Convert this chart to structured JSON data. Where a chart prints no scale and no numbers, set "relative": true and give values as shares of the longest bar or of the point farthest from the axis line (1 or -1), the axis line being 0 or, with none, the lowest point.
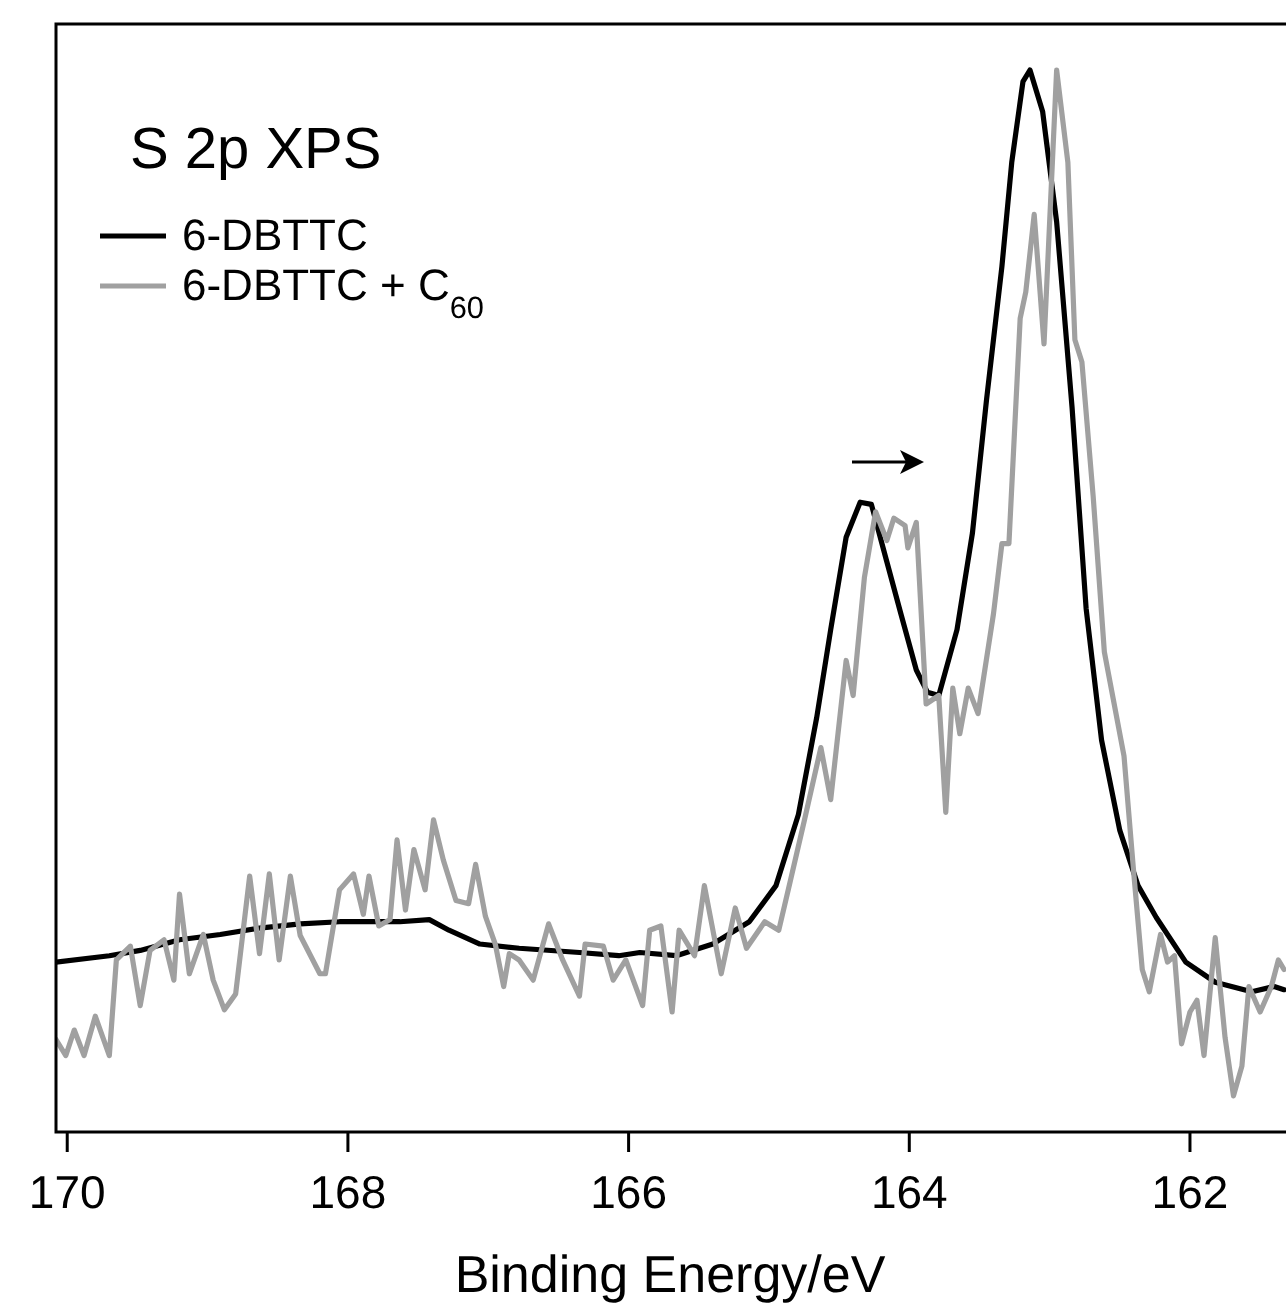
{
  "chart_data": {
    "type": "line",
    "title": "S 2p XPS",
    "xlabel": "Binding Energy/eV",
    "xlim": [
      170.08,
      161.33
    ],
    "xticks": [
      170,
      168,
      166,
      164,
      162
    ],
    "relative": true,
    "grid": false,
    "legend": "top left",
    "line_style": "solid",
    "series": [
      {
        "name": "6-DBTTC",
        "color": "#000000",
        "x": [
          170.08,
          169.7,
          169.48,
          169.2,
          168.91,
          168.63,
          168.34,
          168.06,
          167.63,
          167.42,
          167.28,
          167.06,
          166.78,
          166.35,
          166.07,
          165.92,
          165.66,
          165.4,
          165.14,
          164.95,
          164.79,
          164.66,
          164.56,
          164.45,
          164.35,
          164.27,
          164.16,
          164.06,
          163.95,
          163.87,
          163.79,
          163.66,
          163.55,
          163.45,
          163.34,
          163.27,
          163.19,
          163.14,
          163.05,
          162.95,
          162.84,
          162.74,
          162.63,
          162.5,
          162.37,
          162.24,
          162.03,
          161.82,
          161.56,
          161.4,
          161.33
        ],
        "values": [
          0.16,
          0.166,
          0.171,
          0.181,
          0.186,
          0.192,
          0.196,
          0.198,
          0.198,
          0.2,
          0.19,
          0.177,
          0.173,
          0.169,
          0.166,
          0.169,
          0.166,
          0.177,
          0.198,
          0.232,
          0.299,
          0.39,
          0.473,
          0.56,
          0.593,
          0.591,
          0.537,
          0.488,
          0.435,
          0.414,
          0.411,
          0.473,
          0.564,
          0.689,
          0.815,
          0.913,
          0.989,
          1.0,
          0.961,
          0.857,
          0.682,
          0.493,
          0.369,
          0.284,
          0.232,
          0.202,
          0.16,
          0.141,
          0.132,
          0.137,
          0.134
        ]
      },
      {
        "name": "6-DBTTC + C$_{60}$",
        "color": "#a0a0a0",
        "x": [
          170.08,
          170.01,
          169.95,
          169.88,
          169.8,
          169.7,
          169.65,
          169.55,
          169.48,
          169.41,
          169.31,
          169.24,
          169.2,
          169.13,
          169.03,
          168.96,
          168.88,
          168.8,
          168.7,
          168.63,
          168.56,
          168.49,
          168.41,
          168.34,
          168.2,
          168.16,
          168.06,
          167.96,
          167.89,
          167.85,
          167.78,
          167.7,
          167.65,
          167.59,
          167.53,
          167.45,
          167.39,
          167.32,
          167.23,
          167.14,
          167.09,
          167.02,
          166.95,
          166.89,
          166.85,
          166.78,
          166.68,
          166.57,
          166.47,
          166.35,
          166.31,
          166.18,
          166.11,
          166.02,
          165.9,
          165.85,
          165.77,
          165.69,
          165.64,
          165.53,
          165.46,
          165.34,
          165.24,
          165.16,
          165.03,
          164.93,
          164.85,
          164.75,
          164.63,
          164.56,
          164.45,
          164.4,
          164.32,
          164.24,
          164.16,
          164.11,
          164.03,
          164.01,
          163.95,
          163.88,
          163.79,
          163.74,
          163.69,
          163.64,
          163.58,
          163.51,
          163.4,
          163.34,
          163.29,
          163.21,
          163.17,
          163.11,
          163.04,
          162.95,
          162.87,
          162.82,
          162.77,
          162.69,
          162.61,
          162.47,
          162.4,
          162.34,
          162.29,
          162.21,
          162.16,
          162.11,
          162.06,
          162.0,
          161.95,
          161.9,
          161.82,
          161.75,
          161.69,
          161.63,
          161.58,
          161.5,
          161.42,
          161.37,
          161.33
        ],
        "values": [
          0.087,
          0.072,
          0.096,
          0.072,
          0.109,
          0.072,
          0.162,
          0.175,
          0.119,
          0.171,
          0.181,
          0.143,
          0.224,
          0.149,
          0.186,
          0.143,
          0.115,
          0.13,
          0.241,
          0.168,
          0.243,
          0.162,
          0.241,
          0.185,
          0.149,
          0.149,
          0.228,
          0.243,
          0.205,
          0.241,
          0.194,
          0.2,
          0.275,
          0.209,
          0.266,
          0.228,
          0.294,
          0.256,
          0.218,
          0.215,
          0.252,
          0.203,
          0.177,
          0.137,
          0.168,
          0.162,
          0.143,
          0.196,
          0.162,
          0.128,
          0.177,
          0.175,
          0.143,
          0.162,
          0.119,
          0.19,
          0.194,
          0.113,
          0.19,
          0.166,
          0.232,
          0.149,
          0.211,
          0.173,
          0.198,
          0.19,
          0.235,
          0.292,
          0.362,
          0.313,
          0.444,
          0.411,
          0.522,
          0.584,
          0.557,
          0.578,
          0.571,
          0.55,
          0.574,
          0.403,
          0.411,
          0.301,
          0.418,
          0.375,
          0.418,
          0.394,
          0.488,
          0.554,
          0.554,
          0.766,
          0.791,
          0.864,
          0.742,
          1.0,
          0.913,
          0.746,
          0.725,
          0.599,
          0.452,
          0.354,
          0.243,
          0.153,
          0.132,
          0.186,
          0.16,
          0.166,
          0.083,
          0.113,
          0.124,
          0.072,
          0.183,
          0.089,
          0.034,
          0.062,
          0.137,
          0.113,
          0.137,
          0.162,
          0.153
        ]
      }
    ]
  }
}
